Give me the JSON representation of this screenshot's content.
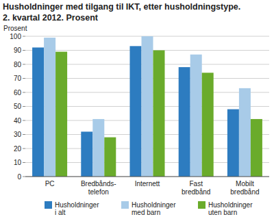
{
  "chart_data": {
    "type": "bar",
    "title": "Husholdninger med tilgang til IKT, etter husholdningstype.",
    "subtitle": "2. kvartal 2012. Prosent",
    "y_label": "Prosent",
    "categories": [
      "PC",
      "Bredbånds-\ntelefon",
      "Internett",
      "Fast\nbredbånd",
      "Mobilt\nbredbånd"
    ],
    "series": [
      {
        "name": "Husholdninger\ni alt",
        "color": "#2d7cc0",
        "values": [
          92,
          32,
          93,
          78,
          48
        ]
      },
      {
        "name": "Husholdninger\nmed barn",
        "color": "#a8cbe8",
        "values": [
          99,
          41,
          100,
          87,
          63
        ]
      },
      {
        "name": "Husholdninger\nuten barn",
        "color": "#6aab2b",
        "values": [
          89,
          28,
          90,
          74,
          41
        ]
      }
    ],
    "ylim": [
      0,
      100
    ],
    "yticks": [
      0,
      10,
      20,
      30,
      40,
      50,
      60,
      70,
      80,
      90,
      100
    ],
    "grid": true,
    "legend": "bottom"
  }
}
